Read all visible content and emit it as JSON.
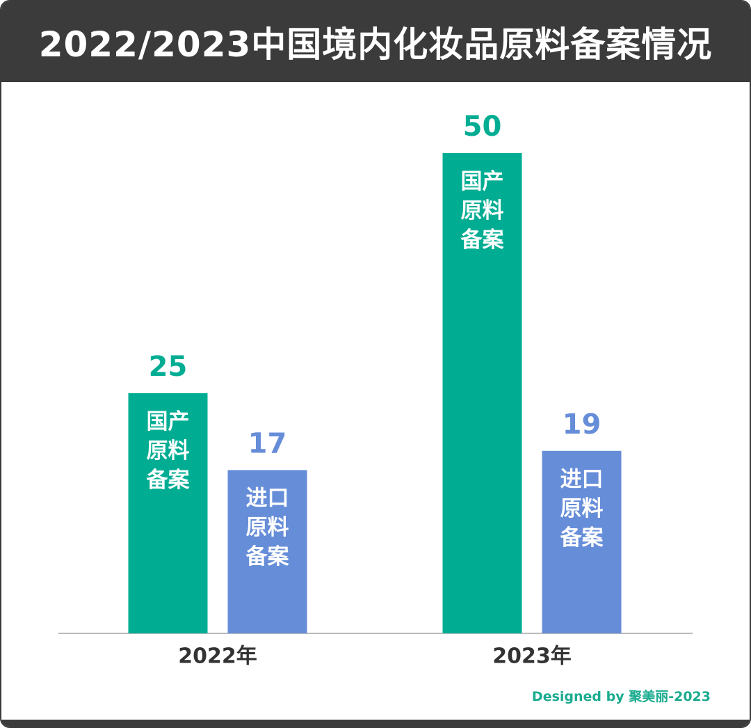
{
  "chart_data": {
    "type": "bar",
    "title": "2022/2023中国境内化妆品原料备案情况",
    "categories": [
      "2022年",
      "2023年"
    ],
    "series": [
      {
        "name": "国产原料备案",
        "color": "#00ad93",
        "values": [
          25,
          50
        ]
      },
      {
        "name": "进口原料备案",
        "color": "#668dd8",
        "values": [
          17,
          19
        ]
      }
    ],
    "ylim": [
      0,
      55
    ],
    "footer": "Designed by 聚美丽-2023"
  }
}
